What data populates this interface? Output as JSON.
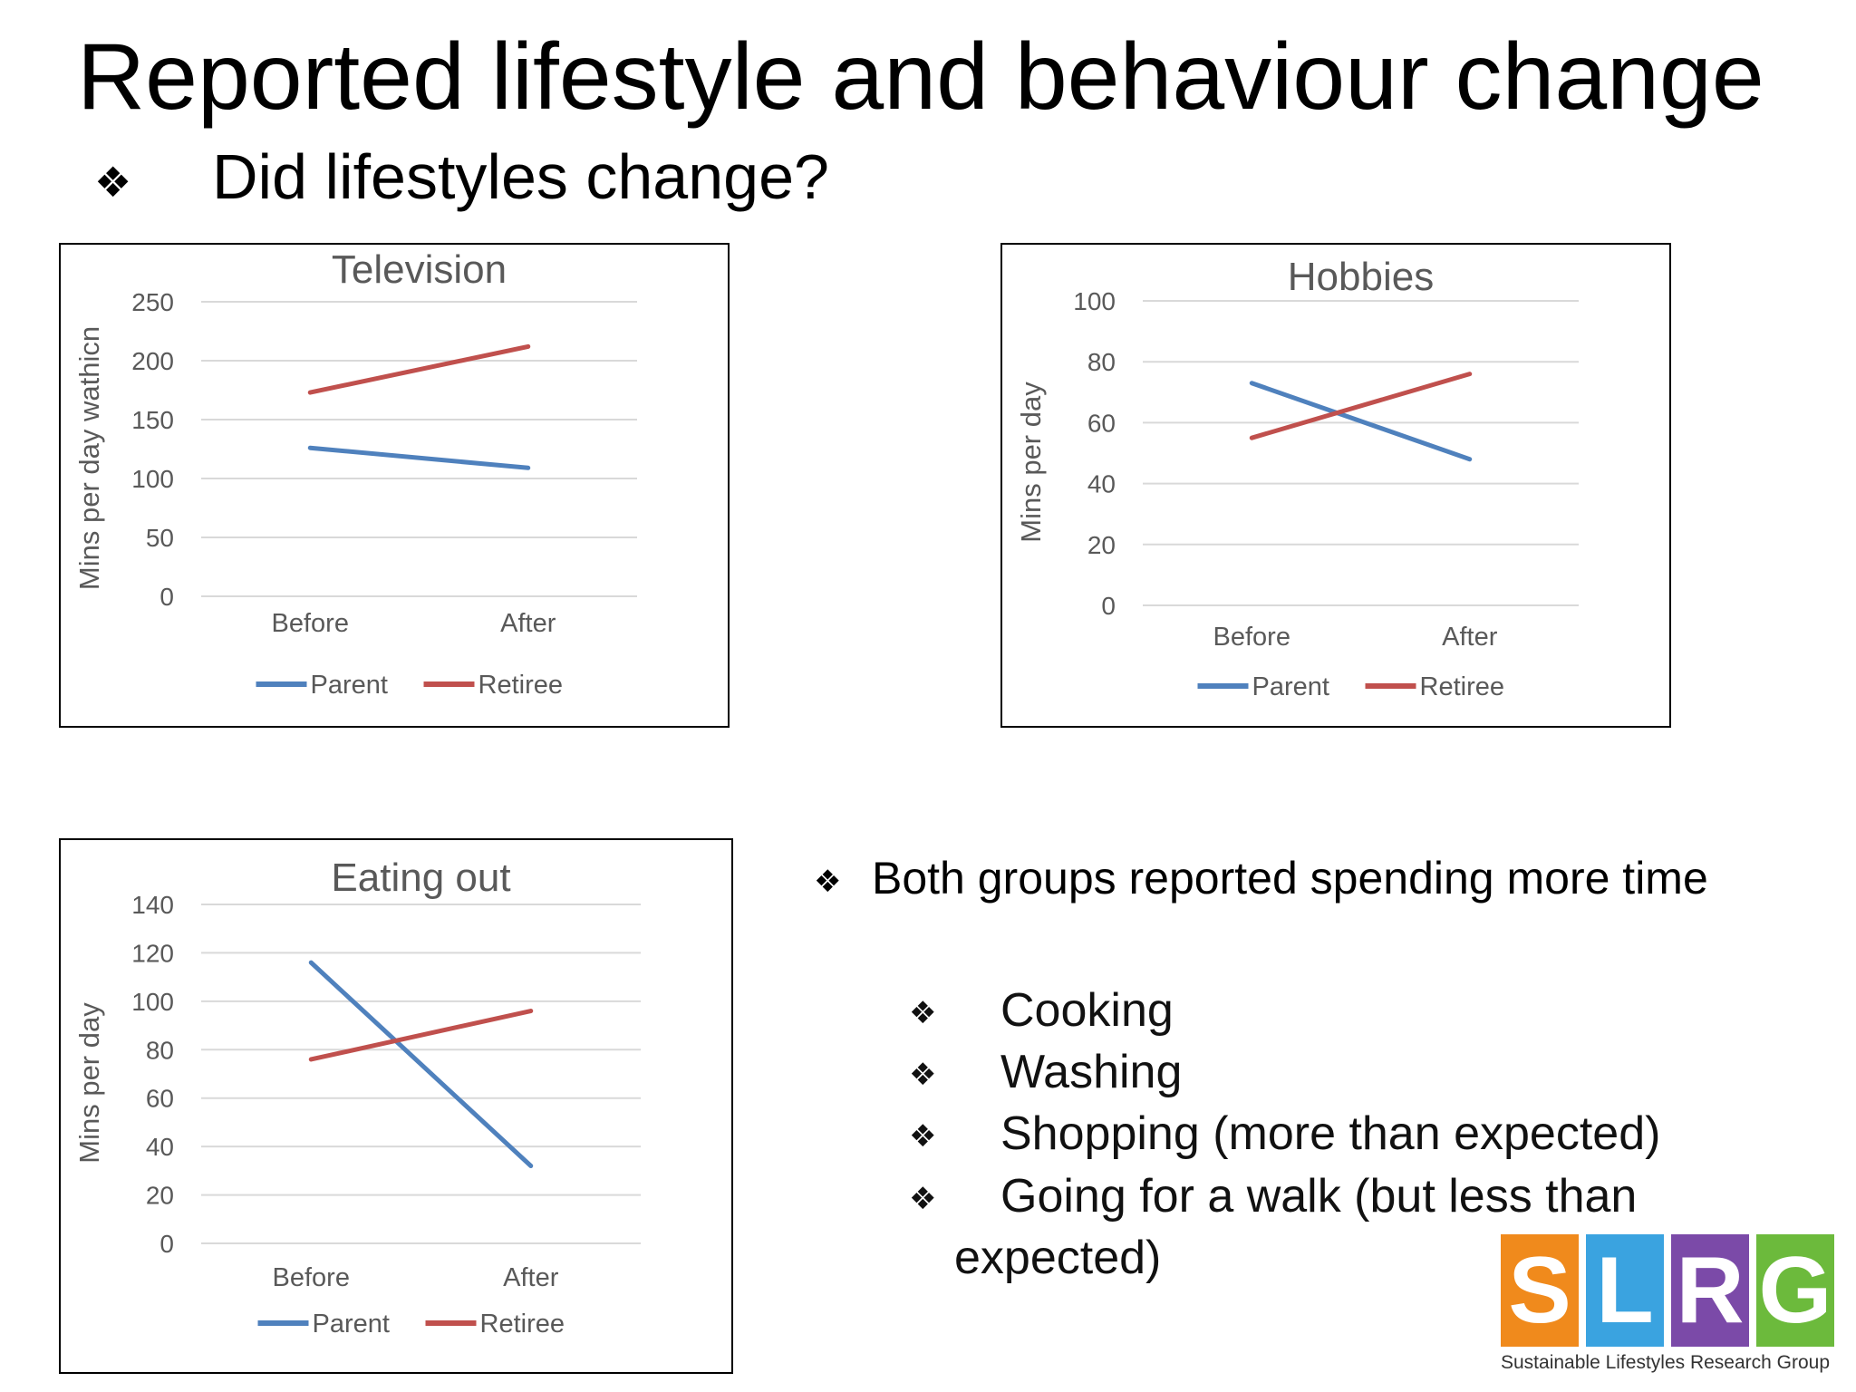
{
  "slide": {
    "title": "Reported lifestyle and behaviour change",
    "subtitle": "Did lifestyles change?",
    "bullet_glyph": "❖"
  },
  "notes": {
    "main": "Both groups reported spending more time",
    "items": [
      "Cooking",
      "Washing",
      "Shopping (more than expected)",
      "Going for a walk (but less than",
      "expected)"
    ]
  },
  "logo": {
    "letters": [
      "S",
      "L",
      "R",
      "G"
    ],
    "colors": [
      "#f08a1c",
      "#3aa3e0",
      "#7b4aa8",
      "#6cba3c"
    ],
    "tagline": "Sustainable Lifestyles Research Group"
  },
  "colors": {
    "parent": "#4f81bd",
    "retiree": "#c0504d",
    "grid": "#d9d9d9",
    "text": "#595959"
  },
  "chart_data": [
    {
      "type": "line",
      "title": "Television",
      "ylabel": "Mins per day wathicn",
      "categories": [
        "Before",
        "After"
      ],
      "ylim": [
        0,
        250
      ],
      "yticks": [
        0,
        50,
        100,
        150,
        200,
        250
      ],
      "grid": true,
      "legend": "bottom",
      "series": [
        {
          "name": "Parent",
          "values": [
            126,
            109
          ]
        },
        {
          "name": "Retiree",
          "values": [
            173,
            212
          ]
        }
      ]
    },
    {
      "type": "line",
      "title": "Hobbies",
      "ylabel": "Mins per day",
      "categories": [
        "Before",
        "After"
      ],
      "ylim": [
        0,
        100
      ],
      "yticks": [
        0,
        20,
        40,
        60,
        80,
        100
      ],
      "grid": true,
      "legend": "bottom",
      "series": [
        {
          "name": "Parent",
          "values": [
            73,
            48
          ]
        },
        {
          "name": "Retiree",
          "values": [
            55,
            76
          ]
        }
      ]
    },
    {
      "type": "line",
      "title": "Eating out",
      "ylabel": "Mins per day",
      "categories": [
        "Before",
        "After"
      ],
      "ylim": [
        0,
        140
      ],
      "yticks": [
        0,
        20,
        40,
        60,
        80,
        100,
        120,
        140
      ],
      "grid": true,
      "legend": "bottom",
      "series": [
        {
          "name": "Parent",
          "values": [
            116,
            32
          ]
        },
        {
          "name": "Retiree",
          "values": [
            76,
            96
          ]
        }
      ]
    }
  ]
}
